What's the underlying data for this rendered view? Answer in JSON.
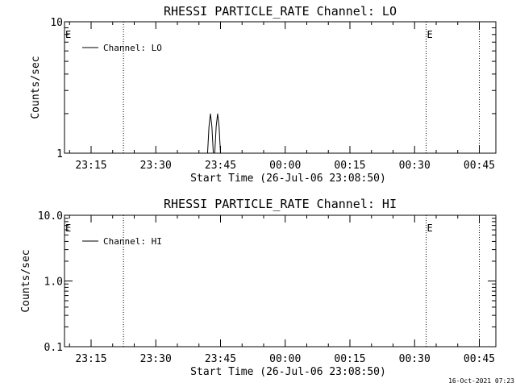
{
  "chart_data": [
    {
      "type": "line",
      "title": "RHESSI PARTICLE_RATE Channel: LO",
      "xlabel": "Start Time (26-Jul-06 23:08:50)",
      "ylabel": "Counts/sec",
      "y_scale": "log",
      "ylim": [
        1,
        10
      ],
      "y_ticks": [
        1,
        10
      ],
      "y_tick_labels": [
        "1",
        "10"
      ],
      "xlim": [
        "23:08:50",
        "00:48:50"
      ],
      "x_ticks": [
        "23:15",
        "23:30",
        "23:45",
        "00:00",
        "00:15",
        "00:30",
        "00:45"
      ],
      "legend": "top-left",
      "series": [
        {
          "name": "Channel: LO",
          "x": [
            "23:08:50",
            "23:42:00",
            "23:42:20",
            "23:42:40",
            "23:43:00",
            "23:43:20",
            "23:43:40",
            "23:44:00",
            "23:44:20",
            "23:44:40",
            "23:45:00",
            "23:45:20",
            "00:48:50"
          ],
          "y": [
            1,
            1,
            1.6,
            2,
            1.6,
            1,
            1,
            1.6,
            2,
            1.6,
            1,
            1,
            1
          ]
        }
      ],
      "vlines": [
        {
          "x": "23:22:30",
          "label": ""
        },
        {
          "x": "00:32:40",
          "label": "E"
        },
        {
          "x": "00:45:00",
          "label": ""
        }
      ],
      "corner_marker": "E"
    },
    {
      "type": "line",
      "title": "RHESSI PARTICLE_RATE Channel: HI",
      "xlabel": "Start Time (26-Jul-06 23:08:50)",
      "ylabel": "Counts/sec",
      "y_scale": "log",
      "ylim": [
        0.1,
        10
      ],
      "y_ticks": [
        0.1,
        1,
        10
      ],
      "y_tick_labels": [
        "0.1",
        "1.0",
        "10.0"
      ],
      "xlim": [
        "23:08:50",
        "00:48:50"
      ],
      "x_ticks": [
        "23:15",
        "23:30",
        "23:45",
        "00:00",
        "00:15",
        "00:30",
        "00:45"
      ],
      "legend": "top-left",
      "series": [
        {
          "name": "Channel: HI",
          "x": [],
          "y": []
        }
      ],
      "vlines": [
        {
          "x": "23:22:30",
          "label": ""
        },
        {
          "x": "00:32:40",
          "label": "E"
        },
        {
          "x": "00:45:00",
          "label": ""
        }
      ],
      "corner_marker": "E"
    }
  ],
  "footer": {
    "timestamp": "16-Oct-2021 07:23"
  }
}
